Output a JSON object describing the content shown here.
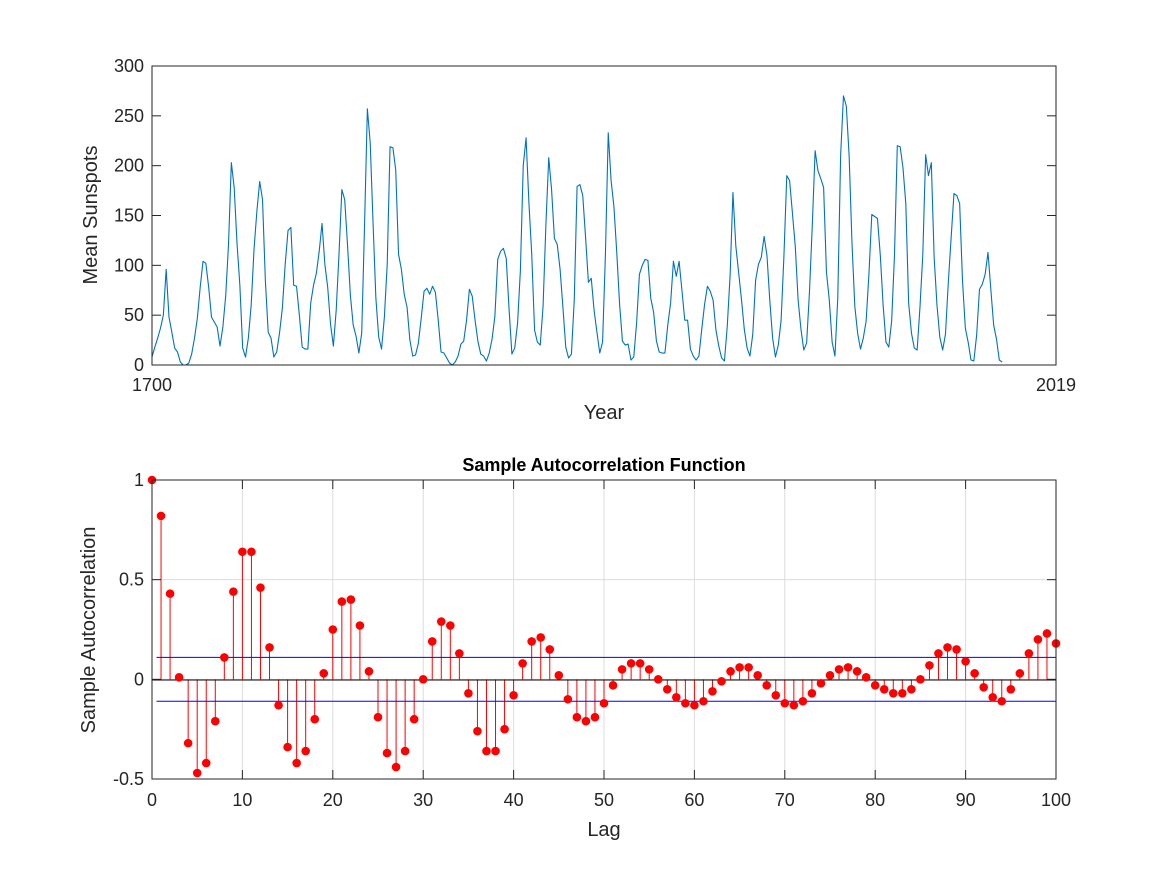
{
  "chart_data": [
    {
      "type": "line",
      "title": "",
      "xlabel": "Year",
      "ylabel": "Mean Sunspots",
      "xlim": [
        1700,
        2019
      ],
      "ylim": [
        0,
        300
      ],
      "x_ticks": [
        "1700",
        "2019"
      ],
      "y_ticks": [
        "0",
        "50",
        "100",
        "150",
        "200",
        "250",
        "300"
      ],
      "grid": false,
      "x_start": 1700,
      "series": [
        {
          "color": "#0072bd",
          "values": [
            8,
            18,
            27,
            37,
            50,
            96,
            48,
            33,
            17,
            13,
            3,
            0,
            0,
            2,
            11,
            27,
            47,
            78,
            104,
            102,
            78,
            48,
            43,
            38,
            19,
            38,
            69,
            121,
            203,
            178,
            122,
            80,
            17,
            8,
            27,
            60,
            116,
            154,
            184,
            166,
            85,
            33,
            27,
            8,
            13,
            32,
            57,
            101,
            135,
            138,
            80,
            79,
            50,
            18,
            16,
            16,
            62,
            80,
            92,
            114,
            142,
            101,
            78,
            41,
            19,
            55,
            112,
            176,
            166,
            120,
            70,
            40,
            29,
            12,
            32,
            140,
            257,
            223,
            143,
            67,
            28,
            16,
            48,
            101,
            219,
            218,
            196,
            111,
            96,
            71,
            58,
            25,
            9,
            10,
            22,
            47,
            74,
            77,
            71,
            79,
            73,
            45,
            13,
            12,
            7,
            2,
            0,
            3,
            9,
            21,
            24,
            45,
            76,
            69,
            45,
            24,
            11,
            9,
            4,
            12,
            26,
            49,
            106,
            114,
            117,
            107,
            56,
            11,
            17,
            42,
            95,
            200,
            228,
            163,
            111,
            35,
            23,
            20,
            59,
            141,
            208,
            176,
            127,
            121,
            96,
            58,
            18,
            7,
            11,
            65,
            179,
            181,
            170,
            128,
            83,
            87,
            55,
            33,
            12,
            23,
            111,
            233,
            185,
            159,
            113,
            61,
            24,
            20,
            21,
            5,
            8,
            42,
            91,
            100,
            106,
            105,
            67,
            53,
            24,
            13,
            12,
            12,
            40,
            62,
            104,
            89,
            104,
            75,
            45,
            45,
            16,
            9,
            5,
            9,
            36,
            61,
            79,
            74,
            65,
            35,
            19,
            7,
            4,
            39,
            90,
            173,
            120,
            93,
            66,
            36,
            17,
            9,
            31,
            85,
            101,
            108,
            129,
            110,
            65,
            27,
            8,
            20,
            45,
            110,
            190,
            185,
            152,
            119,
            65,
            36,
            15,
            22,
            73,
            140,
            215,
            195,
            187,
            178,
            93,
            65,
            23,
            9,
            68,
            210,
            270,
            260,
            210,
            123,
            59,
            32,
            16,
            27,
            44,
            92,
            151,
            149,
            147,
            110,
            60,
            23,
            18,
            44,
            110,
            220,
            219,
            198,
            162,
            62,
            32,
            17,
            15,
            58,
            111,
            211,
            190,
            203,
            108,
            60,
            28,
            15,
            31,
            83,
            128,
            172,
            170,
            162,
            85,
            37,
            23,
            5,
            4,
            30,
            76,
            81,
            91,
            113,
            76,
            40,
            26,
            5,
            3
          ]
        }
      ]
    },
    {
      "type": "stem",
      "title": "Sample Autocorrelation Function",
      "xlabel": "Lag",
      "ylabel": "Sample Autocorrelation",
      "xlim": [
        0,
        100
      ],
      "ylim": [
        -0.5,
        1
      ],
      "x_ticks": [
        "0",
        "10",
        "20",
        "30",
        "40",
        "50",
        "60",
        "70",
        "80",
        "90",
        "100"
      ],
      "y_ticks": [
        "-0.5",
        "0",
        "0.5",
        "1"
      ],
      "grid": true,
      "stem_color": "#ff0000",
      "bound_color": "#0000ff",
      "confidence_bounds": [
        0.11,
        -0.11
      ],
      "lags": [
        0,
        1,
        2,
        3,
        4,
        5,
        6,
        7,
        8,
        9,
        10,
        11,
        12,
        13,
        14,
        15,
        16,
        17,
        18,
        19,
        20,
        21,
        22,
        23,
        24,
        25,
        26,
        27,
        28,
        29,
        30,
        31,
        32,
        33,
        34,
        35,
        36,
        37,
        38,
        39,
        40,
        41,
        42,
        43,
        44,
        45,
        46,
        47,
        48,
        49,
        50,
        51,
        52,
        53,
        54,
        55,
        56,
        57,
        58,
        59,
        60,
        61,
        62,
        63,
        64,
        65,
        66,
        67,
        68,
        69,
        70,
        71,
        72,
        73,
        74,
        75,
        76,
        77,
        78,
        79,
        80,
        81,
        82,
        83,
        84,
        85,
        86,
        87,
        88,
        89,
        90,
        91,
        92,
        93,
        94,
        95,
        96,
        97,
        98,
        99,
        100
      ],
      "values": [
        1.0,
        0.82,
        0.43,
        0.01,
        -0.32,
        -0.47,
        -0.42,
        -0.21,
        0.11,
        0.44,
        0.64,
        0.64,
        0.46,
        0.16,
        -0.13,
        -0.34,
        -0.42,
        -0.36,
        -0.2,
        0.03,
        0.25,
        0.39,
        0.4,
        0.27,
        0.04,
        -0.19,
        -0.37,
        -0.44,
        -0.36,
        -0.2,
        0.0,
        0.19,
        0.29,
        0.27,
        0.13,
        -0.07,
        -0.26,
        -0.36,
        -0.36,
        -0.25,
        -0.08,
        0.08,
        0.19,
        0.21,
        0.15,
        0.02,
        -0.1,
        -0.19,
        -0.21,
        -0.19,
        -0.12,
        -0.03,
        0.05,
        0.08,
        0.08,
        0.05,
        0.0,
        -0.05,
        -0.09,
        -0.12,
        -0.13,
        -0.11,
        -0.06,
        -0.01,
        0.04,
        0.06,
        0.06,
        0.02,
        -0.03,
        -0.08,
        -0.12,
        -0.13,
        -0.11,
        -0.07,
        -0.02,
        0.02,
        0.05,
        0.06,
        0.04,
        0.01,
        -0.03,
        -0.05,
        -0.07,
        -0.07,
        -0.05,
        0.0,
        0.07,
        0.13,
        0.16,
        0.15,
        0.09,
        0.03,
        -0.04,
        -0.09,
        -0.11,
        -0.05,
        0.03,
        0.13,
        0.2,
        0.23,
        0.18
      ]
    }
  ]
}
